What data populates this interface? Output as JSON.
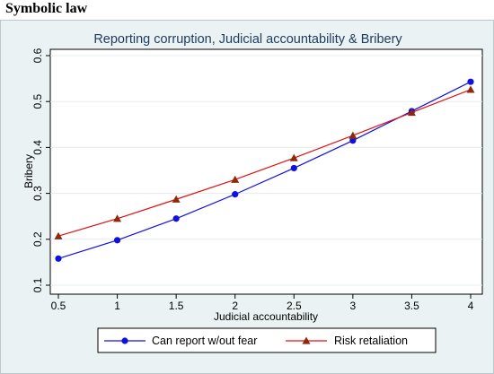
{
  "heading": "Symbolic law",
  "chart_data": {
    "type": "line",
    "title": "Reporting corruption, Judicial accountability & Bribery",
    "xlabel": "Judicial accountability",
    "ylabel": "Bribery",
    "x": [
      0.5,
      1,
      1.5,
      2,
      2.5,
      3,
      3.5,
      4
    ],
    "xticks": [
      "0.5",
      "1",
      "1.5",
      "2",
      "2.5",
      "3",
      "3.5",
      "4"
    ],
    "yticks": [
      "0.1",
      "0.2",
      "0.3",
      "0.4",
      "0.5",
      "0.6"
    ],
    "xlim": [
      0.5,
      4
    ],
    "ylim": [
      0.1,
      0.6
    ],
    "grid": true,
    "legend_position": "bottom",
    "series": [
      {
        "name": "Can report w/out fear",
        "color": "#1010e0",
        "marker": "circle",
        "values": [
          0.158,
          0.198,
          0.245,
          0.298,
          0.355,
          0.415,
          0.479,
          0.543
        ]
      },
      {
        "name": "Risk retaliation",
        "color": "#e01010",
        "marker": "triangle",
        "values": [
          0.207,
          0.245,
          0.287,
          0.33,
          0.377,
          0.426,
          0.476,
          0.526
        ]
      }
    ]
  }
}
